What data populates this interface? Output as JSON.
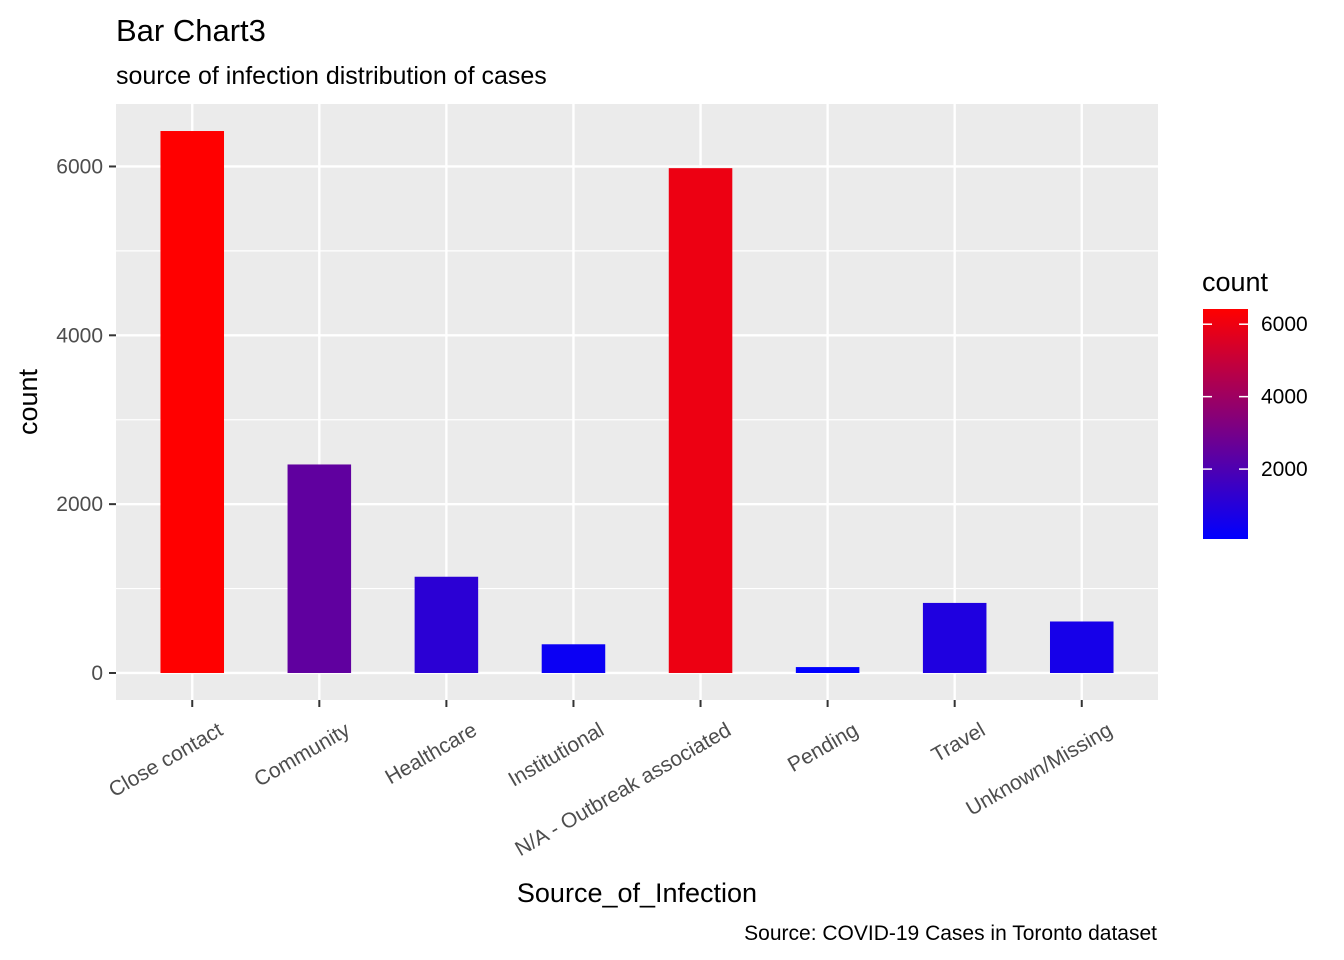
{
  "chart_data": {
    "type": "bar",
    "title": "Bar Chart3",
    "subtitle": "source of infection distribution of cases",
    "caption": "Source: COVID-19 Cases in Toronto dataset",
    "xlabel": "Source_of_Infection",
    "ylabel": "count",
    "categories": [
      "Close contact",
      "Community",
      "Healthcare",
      "Institutional",
      "N/A - Outbreak associated",
      "Pending",
      "Travel",
      "Unknown/Missing"
    ],
    "values": [
      6420,
      2470,
      1140,
      340,
      5980,
      70,
      830,
      610
    ],
    "ylim": [
      -320,
      6740
    ],
    "yticks": [
      0,
      2000,
      4000,
      6000
    ],
    "ytick_labels": [
      "0",
      "2000",
      "4000",
      "6000"
    ],
    "grid": true,
    "panel_background": "#EBEBEB",
    "fill_scale": {
      "low": "#0000FF",
      "high": "#FF0000",
      "min": 70,
      "max": 6420
    },
    "legend": {
      "title": "count",
      "placement": "right",
      "ticks": [
        2000,
        4000,
        6000
      ],
      "tick_labels": [
        "2000",
        "4000",
        "6000"
      ]
    }
  }
}
